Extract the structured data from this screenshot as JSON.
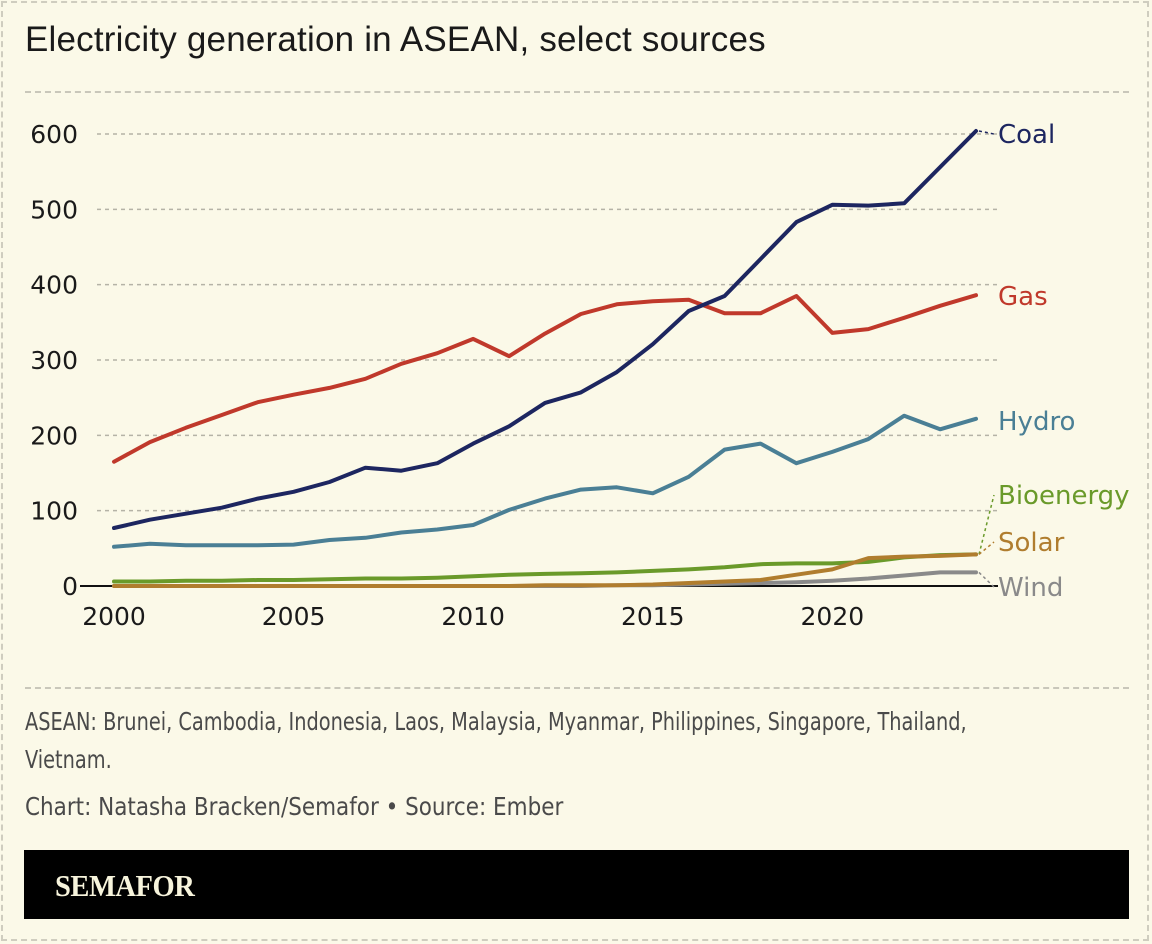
{
  "page": {
    "title": "Electricity generation in ASEAN, select sources",
    "note": "ASEAN: Brunei, Cambodia, Indonesia, Laos, Malaysia, Myanmar, Philippines, Singapore, Thailand, Vietnam.",
    "credit": "Chart: Natasha Bracken/Semafor • Source: Ember",
    "brand": "SEMAFOR"
  },
  "chart_data": {
    "type": "line",
    "title": "Electricity generation in ASEAN, select sources",
    "xlabel": "",
    "ylabel": "",
    "x": [
      2000,
      2001,
      2002,
      2003,
      2004,
      2005,
      2006,
      2007,
      2008,
      2009,
      2010,
      2011,
      2012,
      2013,
      2014,
      2015,
      2016,
      2017,
      2018,
      2019,
      2020,
      2021,
      2022,
      2023,
      2024
    ],
    "xlim": [
      2000,
      2024
    ],
    "ylim": [
      0,
      600
    ],
    "x_ticks": [
      2000,
      2005,
      2010,
      2015,
      2020
    ],
    "x_tick_labels": [
      "2000",
      "2005",
      "2010",
      "2015",
      "2020"
    ],
    "y_ticks": [
      0,
      100,
      200,
      300,
      400,
      500,
      600
    ],
    "y_tick_labels": [
      "0",
      "100",
      "200",
      "300",
      "400",
      "500",
      "600"
    ],
    "grid": true,
    "legend": "direct labels at line ends (right)",
    "series": [
      {
        "name": "Coal",
        "color": "#1d2660",
        "values": [
          77,
          88,
          96,
          104,
          116,
          125,
          138,
          157,
          153,
          163,
          189,
          212,
          243,
          257,
          284,
          321,
          365,
          385,
          434,
          483,
          506,
          505,
          508,
          556,
          604
        ]
      },
      {
        "name": "Gas",
        "color": "#c0392b",
        "values": [
          165,
          191,
          210,
          227,
          244,
          254,
          263,
          275,
          295,
          309,
          328,
          305,
          335,
          361,
          374,
          378,
          380,
          362,
          362,
          385,
          336,
          341,
          356,
          372,
          386
        ]
      },
      {
        "name": "Hydro",
        "color": "#4a7f95",
        "values": [
          52,
          56,
          54,
          54,
          54,
          55,
          61,
          64,
          71,
          75,
          81,
          101,
          116,
          128,
          131,
          123,
          145,
          181,
          189,
          163,
          178,
          195,
          226,
          208,
          222
        ]
      },
      {
        "name": "Bioenergy",
        "color": "#6a9a2a",
        "values": [
          6,
          6,
          7,
          7,
          8,
          8,
          9,
          10,
          10,
          11,
          13,
          15,
          16,
          17,
          18,
          20,
          22,
          25,
          29,
          30,
          30,
          32,
          38,
          41,
          42
        ]
      },
      {
        "name": "Solar",
        "color": "#b07d2e",
        "values": [
          0,
          0,
          0,
          0,
          0,
          0,
          0,
          0,
          0,
          0,
          0,
          0,
          1,
          1,
          1,
          2,
          4,
          6,
          8,
          15,
          22,
          37,
          39,
          40,
          42
        ]
      },
      {
        "name": "Wind",
        "color": "#8a8a8a",
        "values": [
          0,
          0,
          0,
          0,
          0,
          0,
          0,
          0,
          0,
          0,
          0,
          0,
          0,
          0,
          1,
          1,
          2,
          3,
          4,
          5,
          7,
          10,
          14,
          18,
          18
        ]
      }
    ]
  }
}
